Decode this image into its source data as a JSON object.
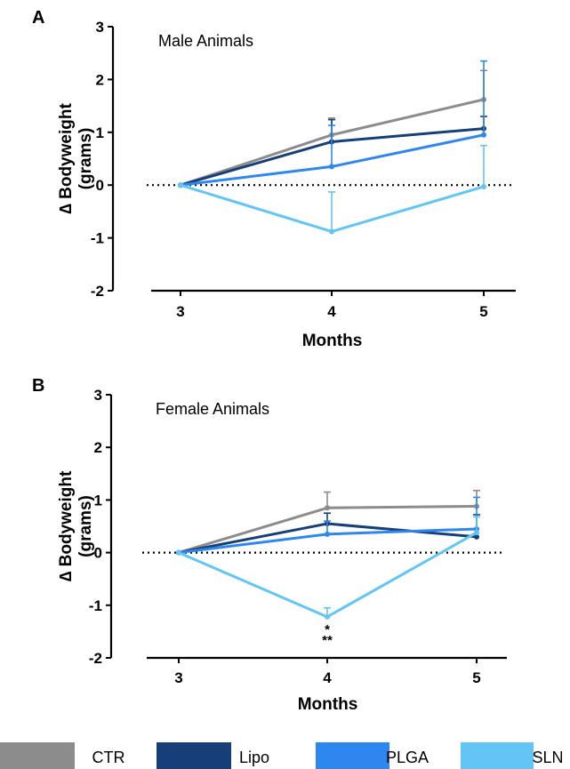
{
  "chart_data": [
    {
      "type": "line",
      "panel": "A",
      "title": "Male Animals",
      "xlabel": "Months",
      "ylabel": "∆ Bodyweight (grams)",
      "ylabel_lines": [
        "∆ Bodyweight",
        "(grams)"
      ],
      "x": [
        3,
        4,
        5
      ],
      "x_ticks": [
        "3",
        "4",
        "5"
      ],
      "y_ticks": [
        "3",
        "2",
        "1",
        "0",
        "-1",
        "-2"
      ],
      "ylim": [
        -2,
        3
      ],
      "reference_line_y": 0,
      "series": [
        {
          "name": "CTR",
          "values": [
            0,
            0.95,
            1.62
          ],
          "errors": [
            0,
            0.32,
            0.55
          ],
          "error_dir": "up"
        },
        {
          "name": "Lipo",
          "values": [
            0,
            0.82,
            1.07
          ],
          "errors": [
            0,
            0.42,
            0.23
          ],
          "error_dir": "up"
        },
        {
          "name": "PLGA",
          "values": [
            0,
            0.35,
            0.95
          ],
          "errors": [
            0,
            0.78,
            1.4
          ],
          "error_dir": "up"
        },
        {
          "name": "SLN",
          "values": [
            0,
            -0.88,
            -0.03
          ],
          "errors": [
            0,
            0.75,
            0.78
          ],
          "error_dir": "up"
        }
      ],
      "annotations": []
    },
    {
      "type": "line",
      "panel": "B",
      "title": "Female Animals",
      "xlabel": "Months",
      "ylabel": "∆ Bodyweight (grams)",
      "ylabel_lines": [
        "∆ Bodyweight",
        "(grams)"
      ],
      "x": [
        3,
        4,
        5
      ],
      "x_ticks": [
        "3",
        "4",
        "5"
      ],
      "y_ticks": [
        "3",
        "2",
        "1",
        "0",
        "-1",
        "-2"
      ],
      "ylim": [
        -2,
        3
      ],
      "reference_line_y": 0,
      "series": [
        {
          "name": "CTR",
          "values": [
            0,
            0.85,
            0.88
          ],
          "errors": [
            0,
            0.3,
            0.3
          ],
          "error_dir": "up"
        },
        {
          "name": "Lipo",
          "values": [
            0,
            0.55,
            0.3
          ],
          "errors": [
            0,
            0.2,
            0.42
          ],
          "error_dir": "up"
        },
        {
          "name": "PLGA",
          "values": [
            0,
            0.35,
            0.45
          ],
          "errors": [
            0,
            0.25,
            0.6
          ],
          "error_dir": "up"
        },
        {
          "name": "SLN",
          "values": [
            0,
            -1.22,
            0.38
          ],
          "errors": [
            0,
            0.17,
            0.3
          ],
          "error_dir": "up"
        }
      ],
      "annotations": [
        {
          "x": 4,
          "series": "SLN",
          "lines": [
            "*",
            "**"
          ]
        }
      ]
    }
  ],
  "legend": {
    "placement": "bottom",
    "entries": [
      {
        "name": "CTR",
        "color": "#8c8c8c"
      },
      {
        "name": "Lipo",
        "color": "#163f7a"
      },
      {
        "name": "PLGA",
        "color": "#2e86ef"
      },
      {
        "name": "SLN",
        "color": "#62c5f5"
      }
    ]
  },
  "colors": {
    "CTR": "#8c8c8c",
    "Lipo": "#163f7a",
    "PLGA": "#2e86ef",
    "SLN": "#62c5f5"
  }
}
